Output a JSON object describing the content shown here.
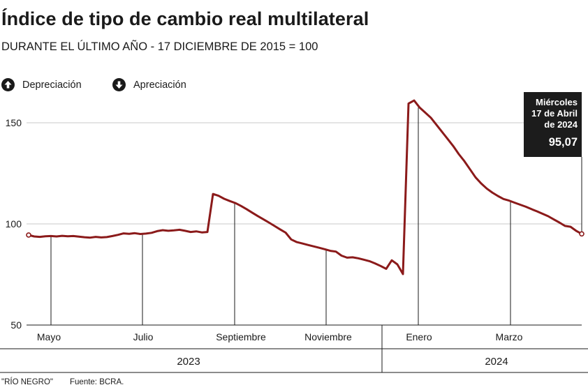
{
  "title": "Índice de tipo de cambio real multilateral",
  "subtitle": "DURANTE EL ÚLTIMO AÑO - 17 DICIEMBRE DE 2015 = 100",
  "legend": {
    "depreciation": "Depreciación",
    "appreciation": "Apreciación"
  },
  "callout": {
    "line1": "Miércoles",
    "line2": "17 de Abril",
    "line3": "de 2024",
    "value": "95,07"
  },
  "footer": {
    "credit": "\"RÍO NEGRO\"",
    "source": "Fuente: BCRA."
  },
  "colors": {
    "line": "#8b1a1a",
    "grid": "#c8c8c8",
    "axis": "#1a1a1a",
    "callout_bg": "#1c1c1c"
  },
  "chart_data": {
    "type": "line",
    "ylim": [
      50,
      162
    ],
    "yticks": [
      50,
      100,
      150
    ],
    "x_tick_labels": [
      "Mayo",
      "Julio",
      "Septiembre",
      "Noviembre",
      "Enero",
      "Marzo"
    ],
    "year_labels": [
      "2023",
      "2024"
    ],
    "series": [
      {
        "values": [
          94.5,
          93.8,
          93.6,
          93.9,
          94.0,
          93.8,
          94.1,
          93.9,
          94.0,
          93.7,
          93.4,
          93.2,
          93.6,
          93.3,
          93.5,
          94.0,
          94.6,
          95.3,
          95.1,
          95.4,
          95.0,
          95.2,
          95.6,
          96.4,
          96.9,
          96.6,
          96.8,
          97.1,
          96.6,
          96.0,
          96.3,
          95.8,
          96.0,
          114.8,
          113.9,
          112.4,
          111.3,
          110.3,
          108.9,
          107.3,
          105.6,
          103.9,
          102.3,
          100.7,
          99.0,
          97.3,
          95.7,
          92.3,
          91.0,
          90.3,
          89.6,
          88.9,
          88.2,
          87.5,
          86.7,
          86.3,
          84.3,
          83.3,
          83.5,
          83.0,
          82.3,
          81.6,
          80.5,
          79.2,
          77.8,
          82.0,
          80.0,
          75.2,
          159.5,
          161.0,
          157.5,
          155.0,
          152.5,
          149.0,
          145.5,
          142.0,
          138.5,
          134.5,
          131.0,
          127.0,
          123.0,
          120.0,
          117.5,
          115.5,
          113.8,
          112.3,
          111.5,
          110.5,
          109.5,
          108.5,
          107.3,
          106.2,
          105.0,
          103.8,
          102.2,
          100.7,
          99.0,
          98.6,
          96.6,
          95.07
        ]
      }
    ]
  }
}
